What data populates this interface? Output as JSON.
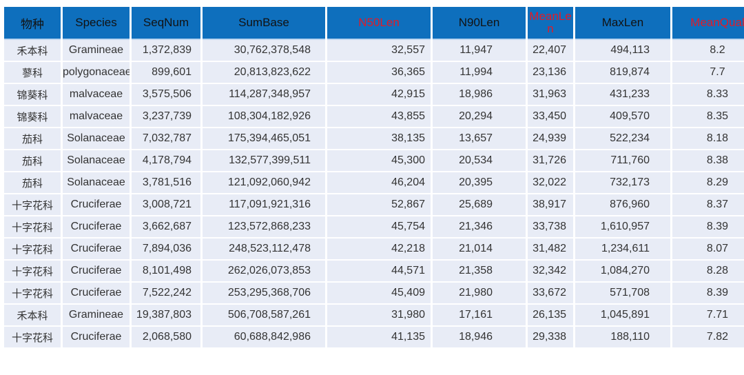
{
  "chart_data": {
    "type": "table",
    "columns": [
      {
        "key": "family",
        "label": "物种",
        "red": false
      },
      {
        "key": "species",
        "label": "Species",
        "red": false
      },
      {
        "key": "seqnum",
        "label": "SeqNum",
        "red": false
      },
      {
        "key": "sumbase",
        "label": "SumBase",
        "red": false
      },
      {
        "key": "n50len",
        "label": "N50Len",
        "red": true
      },
      {
        "key": "n90len",
        "label": "N90Len",
        "red": false
      },
      {
        "key": "meanlen",
        "label": "MeanLen",
        "red": true
      },
      {
        "key": "maxlen",
        "label": "MaxLen",
        "red": false
      },
      {
        "key": "meanqual",
        "label": "MeanQual",
        "red": true
      }
    ],
    "rows": [
      [
        "禾本科",
        "Gramineae",
        "1,372,839",
        "30,762,378,548",
        "32,557",
        "11,947",
        "22,407",
        "494,113",
        "8.2"
      ],
      [
        "蓼科",
        "polygonaceae",
        "899,601",
        "20,813,823,622",
        "36,365",
        "11,994",
        "23,136",
        "819,874",
        "7.7"
      ],
      [
        "锦葵科",
        "malvaceae",
        "3,575,506",
        "114,287,348,957",
        "42,915",
        "18,986",
        "31,963",
        "431,233",
        "8.33"
      ],
      [
        "锦葵科",
        "malvaceae",
        "3,237,739",
        "108,304,182,926",
        "43,855",
        "20,294",
        "33,450",
        "409,570",
        "8.35"
      ],
      [
        "茄科",
        "Solanaceae",
        "7,032,787",
        "175,394,465,051",
        "38,135",
        "13,657",
        "24,939",
        "522,234",
        "8.18"
      ],
      [
        "茄科",
        "Solanaceae",
        "4,178,794",
        "132,577,399,511",
        "45,300",
        "20,534",
        "31,726",
        "711,760",
        "8.38"
      ],
      [
        "茄科",
        "Solanaceae",
        "3,781,516",
        "121,092,060,942",
        "46,204",
        "20,395",
        "32,022",
        "732,173",
        "8.29"
      ],
      [
        "十字花科",
        "Cruciferae",
        "3,008,721",
        "117,091,921,316",
        "52,867",
        "25,689",
        "38,917",
        "876,960",
        "8.37"
      ],
      [
        "十字花科",
        "Cruciferae",
        "3,662,687",
        "123,572,868,233",
        "45,754",
        "21,346",
        "33,738",
        "1,610,957",
        "8.39"
      ],
      [
        "十字花科",
        "Cruciferae",
        "7,894,036",
        "248,523,112,478",
        "42,218",
        "21,014",
        "31,482",
        "1,234,611",
        "8.07"
      ],
      [
        "十字花科",
        "Cruciferae",
        "8,101,498",
        "262,026,073,853",
        "44,571",
        "21,358",
        "32,342",
        "1,084,270",
        "8.28"
      ],
      [
        "十字花科",
        "Cruciferae",
        "7,522,242",
        "253,295,368,706",
        "45,409",
        "21,980",
        "33,672",
        "571,708",
        "8.39"
      ],
      [
        "禾本科",
        "Gramineae",
        "19,387,803",
        "506,708,587,261",
        "31,980",
        "17,161",
        "26,135",
        "1,045,891",
        "7.71"
      ],
      [
        "十字花科",
        "Cruciferae",
        "2,068,580",
        "60,688,842,986",
        "41,135",
        "18,946",
        "29,338",
        "188,110",
        "7.82"
      ]
    ]
  },
  "colors": {
    "header_background": "#0e6fbd",
    "header_text": "#121212",
    "highlight_header_text": "#e01b28",
    "row_background": "#e8ecf6",
    "body_text": "#333333",
    "gridline": "#ffffff"
  }
}
